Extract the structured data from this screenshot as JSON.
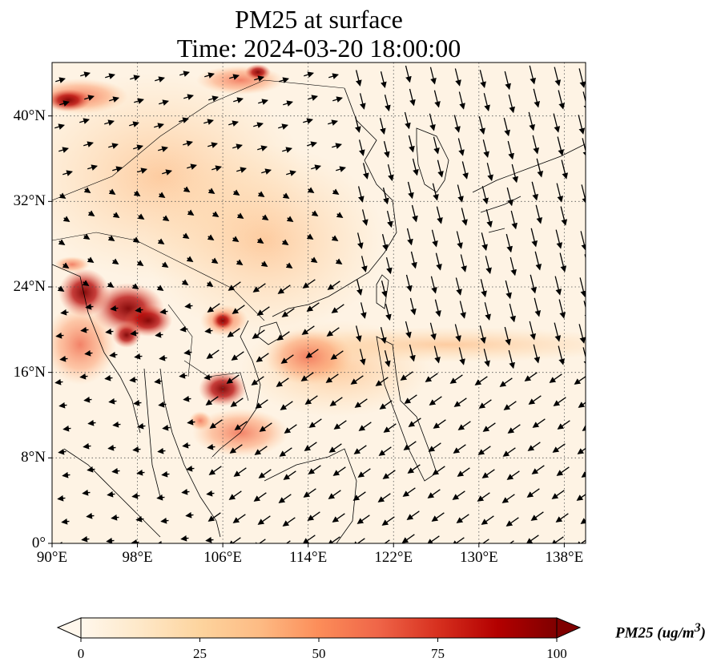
{
  "title": {
    "line1": "PM25 at surface",
    "line2": "Time: 2024-03-20 18:00:00"
  },
  "map": {
    "lon_range": [
      90,
      140
    ],
    "lat_range": [
      0,
      45
    ],
    "lon_ticks": [
      "90°E",
      "98°E",
      "106°E",
      "114°E",
      "122°E",
      "130°E",
      "138°E"
    ],
    "lat_ticks": [
      "0°",
      "8°N",
      "16°N",
      "24°N",
      "32°N",
      "40°N"
    ],
    "gridlines": true,
    "gridline_style": "dotted",
    "field": "PM25 concentration",
    "overlay": "wind vectors (arrows)",
    "hotspots": [
      {
        "region": "Myanmar / northern Thailand / Laos",
        "level": "high (~80-100)"
      },
      {
        "region": "Cambodia (Tonle Sap area)",
        "level": "high (~80-100)"
      },
      {
        "region": "Western China (~40-42°N, 90-95°E)",
        "level": "high (~70-90)"
      },
      {
        "region": "South China Sea plume east of Hainan",
        "level": "moderate (~40-60)"
      },
      {
        "region": "Outflow band ~18-20°N, 120-140°E",
        "level": "moderate (~25-40)"
      }
    ]
  },
  "colorbar": {
    "min": 0,
    "max": 100,
    "ticks": [
      "0",
      "25",
      "50",
      "75",
      "100"
    ],
    "label": "PM25 (ug/m",
    "label_sup": "3",
    "label_close": ")",
    "extend": "both",
    "colormap": "OrRd",
    "stops": [
      "#fff7ec",
      "#fee8c8",
      "#fdd49e",
      "#fdbb84",
      "#fc8d59",
      "#ef6548",
      "#d7301f",
      "#b30000",
      "#7f0000"
    ]
  },
  "colors": {
    "land_outline": "#000000",
    "grid": "#555555",
    "arrow": "#000000"
  }
}
